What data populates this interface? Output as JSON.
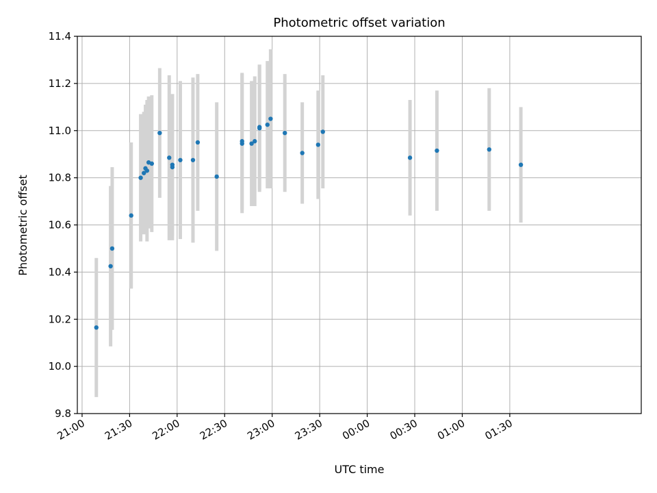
{
  "chart_data": {
    "type": "scatter",
    "title": "Photometric offset variation",
    "xlabel": "UTC time",
    "ylabel": "Photometric offset",
    "ylim": [
      9.8,
      11.4
    ],
    "xlim": [
      "20:57",
      "02:53"
    ],
    "grid": true,
    "x_ticks": [
      "21:00",
      "21:30",
      "22:00",
      "22:30",
      "23:00",
      "23:30",
      "00:00",
      "00:30",
      "01:00",
      "01:30"
    ],
    "y_ticks": [
      "9.8",
      "10.0",
      "10.2",
      "10.4",
      "10.6",
      "10.8",
      "11.0",
      "11.2",
      "11.4"
    ],
    "colors": {
      "point": "#1f77b4",
      "errorbar": "#d3d3d3",
      "grid": "#b0b0b0"
    },
    "points": [
      {
        "x": "21:09",
        "y": 10.165,
        "err": 0.295
      },
      {
        "x": "21:18",
        "y": 10.425,
        "err": 0.34
      },
      {
        "x": "21:19",
        "y": 10.5,
        "err": 0.345
      },
      {
        "x": "21:31",
        "y": 10.64,
        "err": 0.31
      },
      {
        "x": "21:37",
        "y": 10.8,
        "err": 0.27
      },
      {
        "x": "21:39",
        "y": 10.82,
        "err": 0.26
      },
      {
        "x": "21:40",
        "y": 10.84,
        "err": 0.27
      },
      {
        "x": "21:41",
        "y": 10.83,
        "err": 0.3
      },
      {
        "x": "21:42",
        "y": 10.865,
        "err": 0.28
      },
      {
        "x": "21:44",
        "y": 10.86,
        "err": 0.29
      },
      {
        "x": "21:49",
        "y": 10.99,
        "err": 0.275
      },
      {
        "x": "21:55",
        "y": 10.885,
        "err": 0.35
      },
      {
        "x": "21:57",
        "y": 10.845,
        "err": 0.31
      },
      {
        "x": "21:57",
        "y": 10.855,
        "err": 0.3
      },
      {
        "x": "22:02",
        "y": 10.875,
        "err": 0.335
      },
      {
        "x": "22:10",
        "y": 10.875,
        "err": 0.35
      },
      {
        "x": "22:13",
        "y": 10.95,
        "err": 0.29
      },
      {
        "x": "22:25",
        "y": 10.805,
        "err": 0.315
      },
      {
        "x": "22:41",
        "y": 10.945,
        "err": 0.295
      },
      {
        "x": "22:41",
        "y": 10.955,
        "err": 0.29
      },
      {
        "x": "22:47",
        "y": 10.945,
        "err": 0.265
      },
      {
        "x": "22:49",
        "y": 10.955,
        "err": 0.275
      },
      {
        "x": "22:52",
        "y": 11.015,
        "err": 0.265
      },
      {
        "x": "22:52",
        "y": 11.01,
        "err": 0.27
      },
      {
        "x": "22:57",
        "y": 11.025,
        "err": 0.27
      },
      {
        "x": "22:59",
        "y": 11.05,
        "err": 0.295
      },
      {
        "x": "23:08",
        "y": 10.99,
        "err": 0.25
      },
      {
        "x": "23:19",
        "y": 10.905,
        "err": 0.215
      },
      {
        "x": "23:29",
        "y": 10.94,
        "err": 0.23
      },
      {
        "x": "23:32",
        "y": 10.995,
        "err": 0.24
      },
      {
        "x": "00:27",
        "y": 10.885,
        "err": 0.245
      },
      {
        "x": "00:44",
        "y": 10.915,
        "err": 0.255
      },
      {
        "x": "01:17",
        "y": 10.92,
        "err": 0.26
      },
      {
        "x": "01:37",
        "y": 10.855,
        "err": 0.245
      }
    ]
  }
}
